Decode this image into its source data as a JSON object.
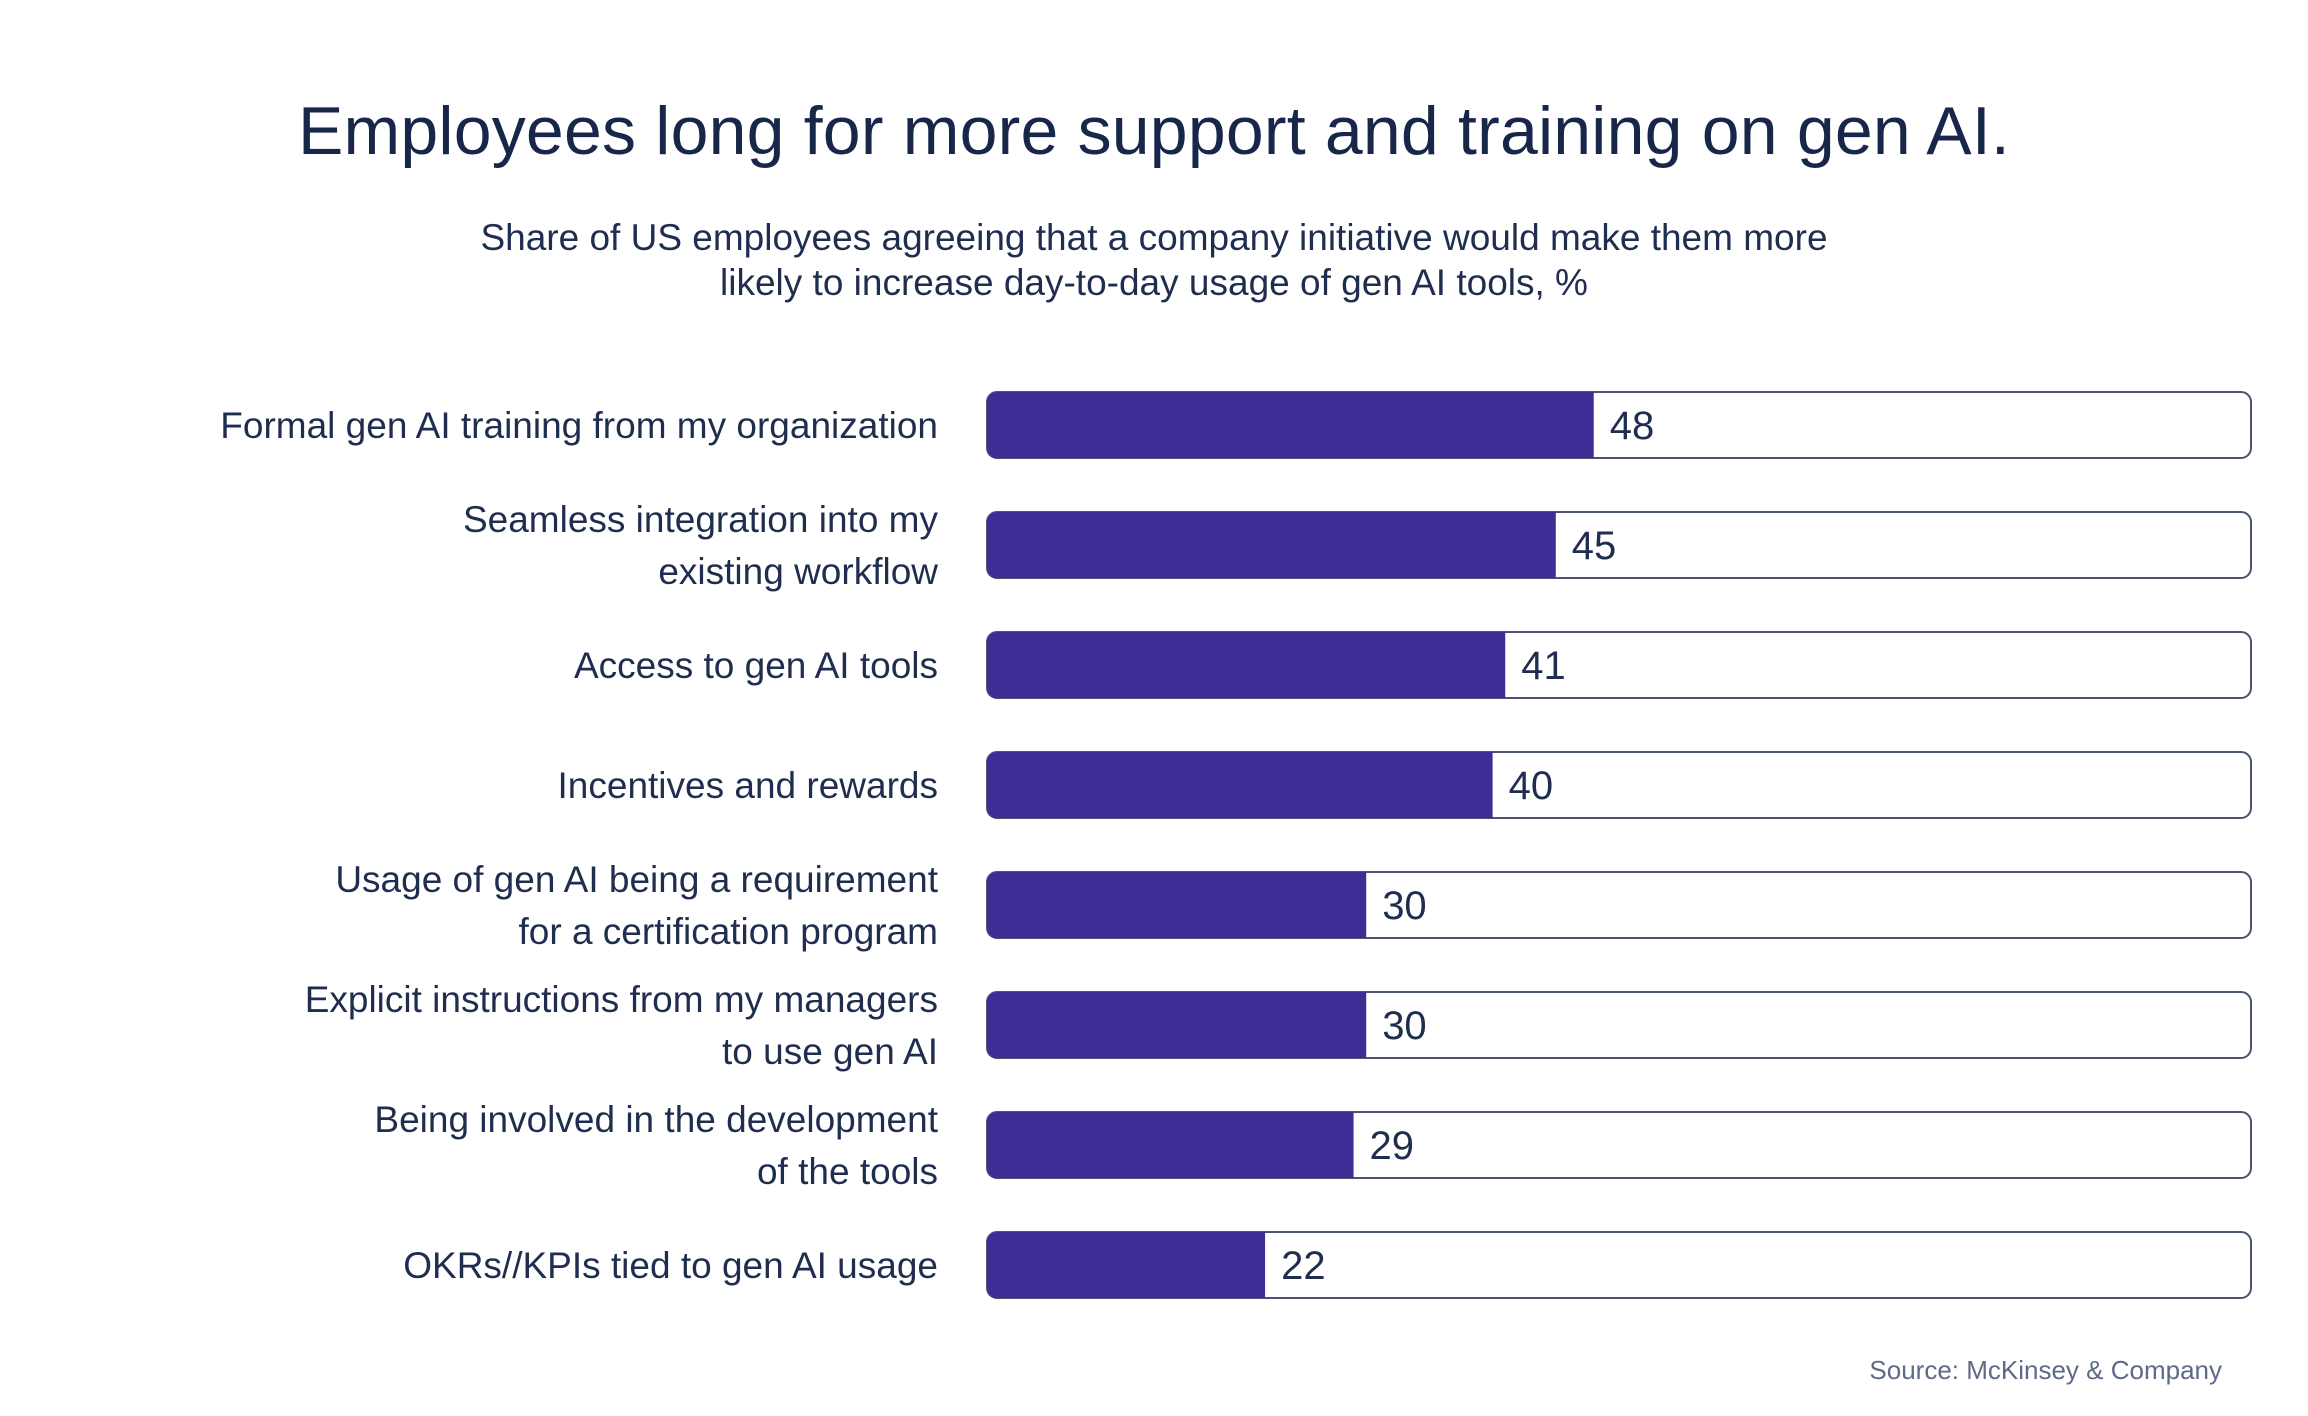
{
  "chart_data": {
    "type": "bar",
    "orientation": "horizontal",
    "title": "Employees long for more support and training on gen AI.",
    "subtitle_lines": [
      "Share of US employees agreeing that a company initiative would make them more",
      "likely to increase day-to-day usage of gen AI tools, %"
    ],
    "categories": [
      [
        "Formal gen AI training from my organization"
      ],
      [
        "Seamless integration into my",
        "existing workflow"
      ],
      [
        "Access to gen AI tools"
      ],
      [
        "Incentives and rewards"
      ],
      [
        "Usage of gen AI being a requirement",
        "for a certification program"
      ],
      [
        "Explicit instructions from my managers",
        "to use gen AI"
      ],
      [
        "Being involved in the development",
        "of the tools"
      ],
      [
        "OKRs//KPIs tied to gen AI usage"
      ]
    ],
    "values": [
      48,
      45,
      41,
      40,
      30,
      30,
      29,
      22
    ],
    "xlim": [
      0,
      100
    ],
    "xlabel": "",
    "ylabel": "",
    "grid": false,
    "legend": "none",
    "source": "Source: McKinsey & Company"
  },
  "colors": {
    "bar_fill": "#3f2d96",
    "track_border": "#4a5573",
    "track_fill": "#ffffff",
    "text": "#1f2d4f",
    "source_text": "#5e6a86"
  }
}
